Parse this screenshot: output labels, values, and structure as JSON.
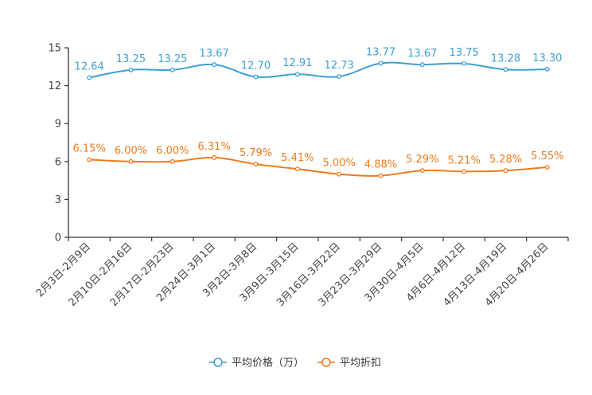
{
  "chart_data": {
    "type": "line",
    "title": "",
    "xlabel": "",
    "ylabel": "",
    "ylim": [
      0,
      15
    ],
    "yticks": [
      "0",
      "3",
      "6",
      "9",
      "12",
      "15"
    ],
    "categories": [
      "2月3日-2月9日",
      "2月10日-2月16日",
      "2月17日-2月23日",
      "2月24日-3月1日",
      "3月2日-3月8日",
      "3月9日-3月15日",
      "3月16日-3月22日",
      "3月23日-3月29日",
      "3月30日-4月5日",
      "4月6日-4月12日",
      "4月13日-4月19日",
      "4月20日-4月26日"
    ],
    "series": [
      {
        "name": "平均价格（万）",
        "color": "#3f9fd2",
        "values": [
          12.64,
          13.25,
          13.25,
          13.67,
          12.7,
          12.91,
          12.73,
          13.77,
          13.67,
          13.75,
          13.28,
          13.3
        ],
        "labels": [
          "12.64",
          "13.25",
          "13.25",
          "13.67",
          "12.70",
          "12.91",
          "12.73",
          "13.77",
          "13.67",
          "13.75",
          "13.28",
          "13.30"
        ]
      },
      {
        "name": "平均折扣",
        "color": "#f07a1a",
        "values": [
          6.15,
          6.0,
          6.0,
          6.31,
          5.79,
          5.41,
          5.0,
          4.88,
          5.29,
          5.21,
          5.28,
          5.55
        ],
        "labels": [
          "6.15%",
          "6.00%",
          "6.00%",
          "6.31%",
          "5.79%",
          "5.41%",
          "5.00%",
          "4.88%",
          "5.29%",
          "5.21%",
          "5.28%",
          "5.55%"
        ]
      }
    ],
    "legend_position": "bottom-center"
  }
}
